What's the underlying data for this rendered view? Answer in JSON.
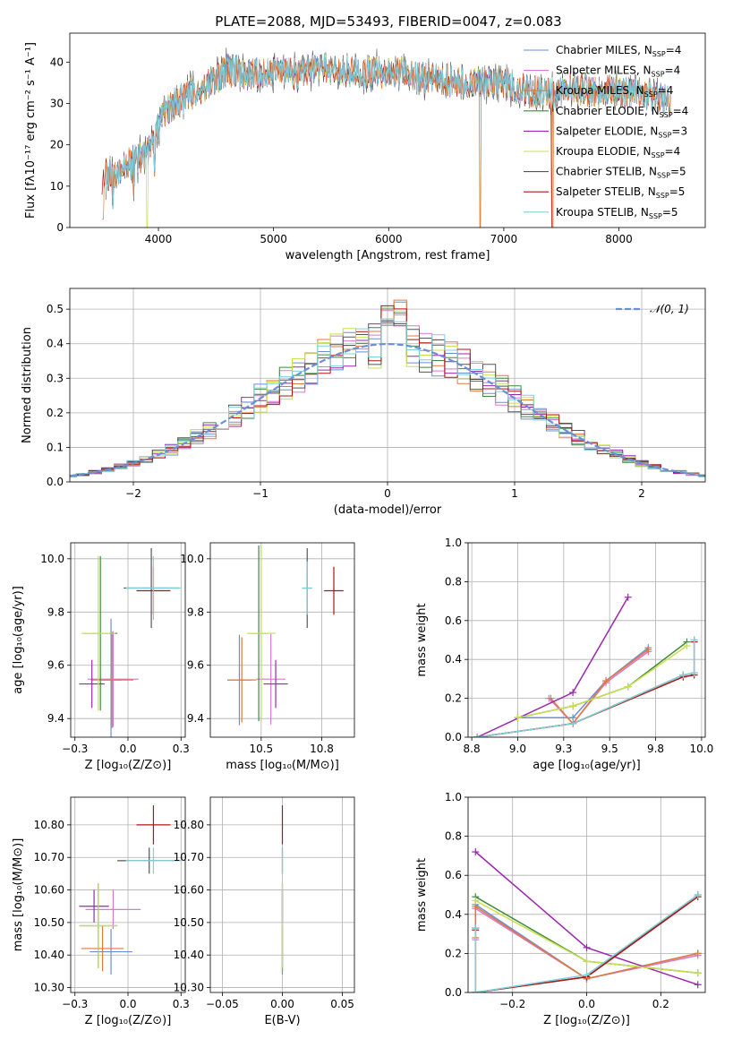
{
  "figure": {
    "title": "PLATE=2088, MJD=53493, FIBERID=0047, z=0.083"
  },
  "colors": {
    "chabrier_miles": "#6b8fd6",
    "salpeter_miles": "#d67ad0",
    "kroupa_miles": "#e07a3c",
    "chabrier_elodie": "#3d8a3d",
    "salpeter_elodie": "#9b27b0",
    "kroupa_elodie": "#c8e04a",
    "chabrier_stelib": "#555555",
    "salpeter_stelib": "#b01515",
    "kroupa_stelib": "#7fd0d8",
    "normal": "#6a8fd8"
  },
  "chart_data": [
    {
      "id": "spectrum",
      "type": "line",
      "xlabel": "wavelength [Angstrom, rest frame]",
      "ylabel": "Flux [fλ10⁻¹⁷ erg cm⁻² s⁻¹ A⁻¹]",
      "xlim": [
        3230,
        8750
      ],
      "ylim": [
        0,
        47
      ],
      "xticks": [
        4000,
        5000,
        6000,
        7000,
        8000
      ],
      "yticks": [
        0,
        10,
        20,
        30,
        40
      ],
      "legend_position": "top-right",
      "grid": false,
      "continuum_x": [
        3500,
        3650,
        3850,
        3950,
        4050,
        4200,
        4400,
        4600,
        4800,
        5000,
        5200,
        5400,
        5600,
        5800,
        6000,
        6200,
        6400,
        6600,
        6800,
        7000,
        7200,
        7400,
        7600,
        7800,
        8000,
        8200,
        8400,
        8500
      ],
      "continuum_y": [
        12,
        14,
        17,
        20,
        28,
        31,
        34,
        38,
        37,
        38,
        37,
        39,
        38,
        37,
        38,
        37,
        36,
        35,
        35,
        35,
        33,
        32,
        34,
        33,
        33,
        33,
        31,
        30
      ],
      "series": [
        {
          "name": "Chabrier MILES, N",
          "suffix": "=4",
          "color_key": "chabrier_miles"
        },
        {
          "name": "Salpeter MILES, N",
          "suffix": "=4",
          "color_key": "salpeter_miles"
        },
        {
          "name": "Kroupa MILES, N",
          "suffix": "=4",
          "color_key": "kroupa_miles"
        },
        {
          "name": "Chabrier ELODIE, N",
          "suffix": "=4",
          "color_key": "chabrier_elodie"
        },
        {
          "name": "Salpeter ELODIE, N",
          "suffix": "=3",
          "color_key": "salpeter_elodie"
        },
        {
          "name": "Kroupa ELODIE, N",
          "suffix": "=4",
          "color_key": "kroupa_elodie"
        },
        {
          "name": "Chabrier STELIB, N",
          "suffix": "=5",
          "color_key": "chabrier_stelib"
        },
        {
          "name": "Salpeter STELIB, N",
          "suffix": "=5",
          "color_key": "salpeter_stelib"
        },
        {
          "name": "Kroupa STELIB, N",
          "suffix": "=5",
          "color_key": "kroupa_stelib"
        }
      ],
      "legend_subscript": "SSP"
    },
    {
      "id": "residuals",
      "type": "histogram",
      "xlabel": "(data-model)/error",
      "ylabel": "Normed distribution",
      "xlim": [
        -2.5,
        2.5
      ],
      "ylim": [
        0,
        0.56
      ],
      "xticks": [
        -2,
        -1,
        0,
        1,
        2
      ],
      "yticks": [
        0.0,
        0.1,
        0.2,
        0.3,
        0.4,
        0.5
      ],
      "grid": true,
      "legend_position": "top-right",
      "normal_label": "𝒩(0, 1)",
      "bin_width": 0.1
    },
    {
      "id": "z_age",
      "type": "errorbar",
      "xlabel": "Z [log₁₀(Z/Z⊙)]",
      "ylabel": "age  [log₁₀(age/yr)]",
      "xlim": [
        -0.27,
        0.27
      ],
      "ylim": [
        9.33,
        10.06
      ],
      "xticks": [
        -0.25,
        0.0,
        0.25
      ],
      "yticks": [
        9.4,
        9.6,
        9.8,
        10.0
      ],
      "grid": true,
      "points": [
        {
          "k": "chabrier_miles",
          "x": -0.08,
          "xe": 0.05,
          "y": 9.545,
          "ye": 0.23
        },
        {
          "k": "salpeter_miles",
          "x": -0.07,
          "xe": 0.12,
          "y": 9.548,
          "ye": 0.18
        },
        {
          "k": "kroupa_miles",
          "x": -0.075,
          "xe": 0.1,
          "y": 9.545,
          "ye": 0.18
        },
        {
          "k": "chabrier_elodie",
          "x": -0.13,
          "xe": 0.08,
          "y": 9.72,
          "ye": 0.29
        },
        {
          "k": "salpeter_elodie",
          "x": -0.17,
          "xe": 0.06,
          "y": 9.53,
          "ye": 0.09
        },
        {
          "k": "kroupa_elodie",
          "x": -0.14,
          "xe": 0.08,
          "y": 9.72,
          "ye": 0.29
        },
        {
          "k": "chabrier_stelib",
          "x": 0.11,
          "xe": 0.13,
          "y": 9.89,
          "ye": 0.15
        },
        {
          "k": "salpeter_stelib",
          "x": 0.12,
          "xe": 0.08,
          "y": 9.88,
          "ye": 0.09
        },
        {
          "k": "kroupa_stelib",
          "x": 0.12,
          "xe": 0.13,
          "y": 9.89,
          "ye": 0.12
        }
      ]
    },
    {
      "id": "mass_age",
      "type": "errorbar",
      "xlabel": "mass [log₁₀(M/M⊙)]",
      "ylabel": "",
      "xlim": [
        10.29,
        10.885
      ],
      "ylim": [
        9.33,
        10.06
      ],
      "xticks": [
        10.5,
        10.75
      ],
      "yticks": [
        9.4,
        9.6,
        9.8,
        10.0
      ],
      "grid": true,
      "points": [
        {
          "k": "chabrier_miles",
          "x": 10.41,
          "xe": 0.05,
          "y": 9.545,
          "ye": 0.17
        },
        {
          "k": "salpeter_miles",
          "x": 10.54,
          "xe": 0.06,
          "y": 9.548,
          "ye": 0.17
        },
        {
          "k": "kroupa_miles",
          "x": 10.42,
          "xe": 0.06,
          "y": 9.545,
          "ye": 0.16
        },
        {
          "k": "chabrier_elodie",
          "x": 10.49,
          "xe": 0.04,
          "y": 9.72,
          "ye": 0.33
        },
        {
          "k": "salpeter_elodie",
          "x": 10.56,
          "xe": 0.05,
          "y": 9.53,
          "ye": 0.09
        },
        {
          "k": "kroupa_elodie",
          "x": 10.5,
          "xe": 0.06,
          "y": 9.72,
          "ye": 0.33
        },
        {
          "k": "chabrier_stelib",
          "x": 10.69,
          "xe": 0.02,
          "y": 9.89,
          "ye": 0.15
        },
        {
          "k": "salpeter_stelib",
          "x": 10.8,
          "xe": 0.04,
          "y": 9.88,
          "ye": 0.09
        },
        {
          "k": "kroupa_stelib",
          "x": 10.69,
          "xe": 0.02,
          "y": 9.89,
          "ye": 0.1
        }
      ]
    },
    {
      "id": "age_weight",
      "type": "line",
      "xlabel": "age  [log₁₀(age/yr)]",
      "ylabel": "mass weight",
      "xlim": [
        8.73,
        10.02
      ],
      "ylim": [
        0,
        1
      ],
      "xticks": [
        8.75,
        9.0,
        9.25,
        9.5,
        9.75,
        10.0
      ],
      "yticks": [
        0.0,
        0.2,
        0.4,
        0.6,
        0.8,
        1.0
      ],
      "grid": true,
      "lines": [
        {
          "k": "chabrier_miles",
          "x": [
            9.0,
            9.3,
            9.48,
            9.71
          ],
          "y": [
            0.1,
            0.1,
            0.29,
            0.46
          ]
        },
        {
          "k": "salpeter_miles",
          "x": [
            9.17,
            9.3,
            9.48,
            9.71
          ],
          "y": [
            0.2,
            0.07,
            0.28,
            0.44
          ]
        },
        {
          "k": "kroupa_miles",
          "x": [
            9.18,
            9.3,
            9.48,
            9.71
          ],
          "y": [
            0.2,
            0.07,
            0.29,
            0.45
          ]
        },
        {
          "k": "chabrier_elodie",
          "x": [
            9.0,
            9.3,
            9.6,
            9.92
          ],
          "y": [
            0.1,
            0.16,
            0.26,
            0.49
          ]
        },
        {
          "k": "salpeter_elodie",
          "x": [
            8.78,
            9.3,
            9.6
          ],
          "y": [
            0.0,
            0.23,
            0.72
          ]
        },
        {
          "k": "kroupa_elodie",
          "x": [
            9.0,
            9.3,
            9.6,
            9.92
          ],
          "y": [
            0.1,
            0.16,
            0.26,
            0.47
          ]
        },
        {
          "k": "chabrier_stelib",
          "x": [
            8.78,
            9.3,
            9.9,
            9.96,
            9.96
          ],
          "y": [
            0.0,
            0.07,
            0.32,
            0.33,
            0.5
          ]
        },
        {
          "k": "salpeter_stelib",
          "x": [
            8.78,
            9.3,
            9.9,
            9.96,
            9.96
          ],
          "y": [
            0.0,
            0.07,
            0.31,
            0.32,
            0.49
          ]
        },
        {
          "k": "kroupa_stelib",
          "x": [
            8.78,
            9.3,
            9.9,
            9.96,
            9.96
          ],
          "y": [
            0.0,
            0.07,
            0.32,
            0.33,
            0.5
          ]
        }
      ]
    },
    {
      "id": "z_mass",
      "type": "errorbar",
      "xlabel": "Z [log₁₀(Z/Z⊙)]",
      "ylabel": "mass [log₁₀(M/M⊙)]",
      "xlim": [
        -0.27,
        0.27
      ],
      "ylim": [
        10.285,
        10.885
      ],
      "xticks": [
        -0.25,
        0.0,
        0.25
      ],
      "yticks": [
        10.3,
        10.4,
        10.5,
        10.6,
        10.7,
        10.8
      ],
      "grid": true,
      "points": [
        {
          "k": "chabrier_miles",
          "x": -0.08,
          "xe": 0.1,
          "y": 10.41,
          "ye": 0.07
        },
        {
          "k": "salpeter_miles",
          "x": -0.07,
          "xe": 0.13,
          "y": 10.54,
          "ye": 0.06
        },
        {
          "k": "kroupa_miles",
          "x": -0.12,
          "xe": 0.1,
          "y": 10.42,
          "ye": 0.07
        },
        {
          "k": "chabrier_elodie",
          "x": -0.14,
          "xe": 0.09,
          "y": 10.49,
          "ye": 0.13
        },
        {
          "k": "salpeter_elodie",
          "x": -0.16,
          "xe": 0.07,
          "y": 10.55,
          "ye": 0.05
        },
        {
          "k": "kroupa_elodie",
          "x": -0.14,
          "xe": 0.09,
          "y": 10.49,
          "ye": 0.13
        },
        {
          "k": "chabrier_stelib",
          "x": 0.1,
          "xe": 0.15,
          "y": 10.69,
          "ye": 0.04
        },
        {
          "k": "salpeter_stelib",
          "x": 0.12,
          "xe": 0.08,
          "y": 10.8,
          "ye": 0.06
        },
        {
          "k": "kroupa_stelib",
          "x": 0.12,
          "xe": 0.13,
          "y": 10.69,
          "ye": 0.04
        }
      ]
    },
    {
      "id": "ebv_mass",
      "type": "errorbar",
      "xlabel": "E(B-V)",
      "ylabel": "",
      "xlim": [
        -0.06,
        0.06
      ],
      "ylim": [
        10.285,
        10.885
      ],
      "xticks": [
        -0.05,
        0.0,
        0.05
      ],
      "yticks": [
        10.3,
        10.4,
        10.5,
        10.6,
        10.7,
        10.8
      ],
      "grid": true,
      "points": [
        {
          "k": "chabrier_miles",
          "x": 0.0,
          "xe": 0.0,
          "y": 10.41,
          "ye": 0.07
        },
        {
          "k": "salpeter_miles",
          "x": 0.0,
          "xe": 0.0,
          "y": 10.54,
          "ye": 0.06
        },
        {
          "k": "kroupa_miles",
          "x": 0.0,
          "xe": 0.0,
          "y": 10.42,
          "ye": 0.07
        },
        {
          "k": "chabrier_elodie",
          "x": 0.0,
          "xe": 0.0,
          "y": 10.49,
          "ye": 0.13
        },
        {
          "k": "salpeter_elodie",
          "x": 0.0,
          "xe": 0.0,
          "y": 10.55,
          "ye": 0.05
        },
        {
          "k": "kroupa_elodie",
          "x": 0.0,
          "xe": 0.0,
          "y": 10.49,
          "ye": 0.13
        },
        {
          "k": "chabrier_stelib",
          "x": 0.0,
          "xe": 0.0,
          "y": 10.69,
          "ye": 0.04
        },
        {
          "k": "salpeter_stelib",
          "x": 0.0,
          "xe": 0.0,
          "y": 10.8,
          "ye": 0.06
        },
        {
          "k": "kroupa_stelib",
          "x": 0.0,
          "xe": 0.0,
          "y": 10.69,
          "ye": 0.04
        }
      ]
    },
    {
      "id": "z_weight",
      "type": "line",
      "xlabel": "Z [log₁₀(Z/Z⊙)]",
      "ylabel": "mass weight",
      "xlim": [
        -0.32,
        0.32
      ],
      "ylim": [
        0,
        1
      ],
      "xticks": [
        -0.2,
        0.0,
        0.2
      ],
      "yticks": [
        0.0,
        0.2,
        0.4,
        0.6,
        0.8,
        1.0
      ],
      "grid": true,
      "lines": [
        {
          "k": "chabrier_miles",
          "x": [
            -0.3,
            -0.3,
            0.0,
            0.3
          ],
          "y": [
            0.33,
            0.45,
            0.07,
            0.2
          ]
        },
        {
          "k": "salpeter_miles",
          "x": [
            -0.3,
            -0.3,
            0.0,
            0.3
          ],
          "y": [
            0.27,
            0.43,
            0.07,
            0.19
          ]
        },
        {
          "k": "kroupa_miles",
          "x": [
            -0.3,
            -0.3,
            0.0,
            0.3
          ],
          "y": [
            0.28,
            0.44,
            0.07,
            0.2
          ]
        },
        {
          "k": "chabrier_elodie",
          "x": [
            -0.3,
            0.0,
            0.3
          ],
          "y": [
            0.49,
            0.16,
            0.1
          ]
        },
        {
          "k": "salpeter_elodie",
          "x": [
            -0.3,
            0.0,
            0.3
          ],
          "y": [
            0.72,
            0.23,
            0.04
          ]
        },
        {
          "k": "kroupa_elodie",
          "x": [
            -0.3,
            0.0,
            0.3
          ],
          "y": [
            0.47,
            0.16,
            0.1
          ]
        },
        {
          "k": "chabrier_stelib",
          "x": [
            -0.3,
            -0.3,
            0.0,
            0.3
          ],
          "y": [
            0.33,
            0.0,
            0.08,
            0.5
          ]
        },
        {
          "k": "salpeter_stelib",
          "x": [
            -0.3,
            -0.3,
            0.0,
            0.3
          ],
          "y": [
            0.32,
            0.0,
            0.08,
            0.49
          ]
        },
        {
          "k": "kroupa_stelib",
          "x": [
            -0.3,
            -0.3,
            0.0,
            0.3
          ],
          "y": [
            0.33,
            0.0,
            0.09,
            0.5
          ]
        }
      ]
    }
  ]
}
